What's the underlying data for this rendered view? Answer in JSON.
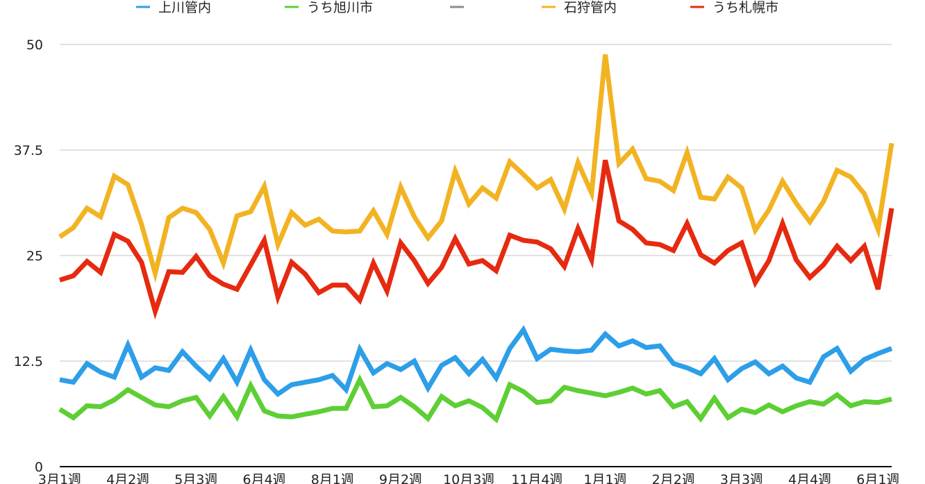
{
  "chart_data": {
    "type": "line",
    "legend_position": "top",
    "grid": true,
    "ylim": [
      0,
      50
    ],
    "y_ticks": [
      "0",
      "12.5",
      "25",
      "37.5",
      "50"
    ],
    "x_tick_labels": [
      "3月1週",
      "4月2週",
      "5月3週",
      "6月4週",
      "8月1週",
      "9月2週",
      "10月3週",
      "11月4週",
      "1月1週",
      "2月2週",
      "3月3週",
      "4月4週",
      "6月1週"
    ],
    "series": [
      {
        "name": "上川管内",
        "color": "#2d9ee8",
        "values": [
          10.3,
          10,
          12.2,
          11.2,
          10.6,
          14.4,
          10.6,
          11.7,
          11.4,
          13.6,
          11.9,
          10.4,
          12.8,
          10,
          13.8,
          10.3,
          8.6,
          9.7,
          10,
          10.3,
          10.8,
          9.1,
          13.9,
          11.1,
          12.2,
          11.5,
          12.5,
          9.3,
          12,
          12.9,
          11,
          12.7,
          10.5,
          14,
          16.2,
          12.8,
          13.9,
          13.7,
          13.6,
          13.8,
          15.7,
          14.3,
          14.9,
          14.1,
          14.3,
          12.2,
          11.7,
          11,
          12.8,
          10.3,
          11.6,
          12.4,
          11,
          11.9,
          10.5,
          10,
          13,
          14,
          11.3,
          12.7,
          13.4,
          14
        ]
      },
      {
        "name": "うち旭川市",
        "color": "#5dcf34",
        "values": [
          6.8,
          5.8,
          7.2,
          7.1,
          7.9,
          9.1,
          8.2,
          7.3,
          7.1,
          7.8,
          8.2,
          6,
          8.3,
          5.9,
          9.6,
          6.6,
          6,
          5.9,
          6.2,
          6.5,
          6.9,
          6.9,
          10.3,
          7.1,
          7.2,
          8.2,
          7.1,
          5.7,
          8.3,
          7.2,
          7.8,
          7,
          5.6,
          9.7,
          8.9,
          7.6,
          7.8,
          9.4,
          9,
          8.7,
          8.4,
          8.8,
          9.3,
          8.6,
          9,
          7.1,
          7.7,
          5.7,
          8.1,
          5.8,
          6.8,
          6.4,
          7.3,
          6.5,
          7.2,
          7.7,
          7.4,
          8.5,
          7.2,
          7.7,
          7.6,
          8
        ]
      },
      {
        "name": "",
        "color": "#8c8c8c",
        "values": []
      },
      {
        "name": "石狩管内",
        "color": "#f2b323",
        "values": [
          27.2,
          28.3,
          30.6,
          29.6,
          34.4,
          33.4,
          28.7,
          22.9,
          29.5,
          30.6,
          30.1,
          28.1,
          24.1,
          29.7,
          30.2,
          33.2,
          26.3,
          30.1,
          28.6,
          29.3,
          27.9,
          27.8,
          27.9,
          30.3,
          27.5,
          33.1,
          29.6,
          27.1,
          29.1,
          35,
          31.1,
          33,
          31.8,
          36.1,
          34.6,
          33,
          34,
          30.5,
          36,
          32.4,
          48.8,
          35.9,
          37.6,
          34.1,
          33.8,
          32.7,
          37.2,
          31.9,
          31.7,
          34.3,
          33,
          28,
          30.4,
          33.8,
          31.2,
          29,
          31.4,
          35.1,
          34.3,
          32.3,
          28.1,
          38.3
        ]
      },
      {
        "name": "うち札幌市",
        "color": "#e62a10",
        "values": [
          22.1,
          22.6,
          24.3,
          23,
          27.5,
          26.7,
          24.2,
          18.4,
          23.1,
          23,
          24.9,
          22.6,
          21.6,
          21,
          23.9,
          26.8,
          20.1,
          24.2,
          22.8,
          20.6,
          21.5,
          21.5,
          19.7,
          24.1,
          20.8,
          26.5,
          24.4,
          21.7,
          23.6,
          27,
          24,
          24.4,
          23.2,
          27.4,
          26.8,
          26.6,
          25.8,
          23.7,
          28.2,
          24.5,
          36.3,
          29.1,
          28.1,
          26.5,
          26.3,
          25.6,
          28.8,
          25.1,
          24.1,
          25.6,
          26.5,
          21.8,
          24.4,
          28.8,
          24.5,
          22.4,
          23.9,
          26.1,
          24.4,
          26.1,
          21,
          30.6
        ]
      }
    ]
  }
}
